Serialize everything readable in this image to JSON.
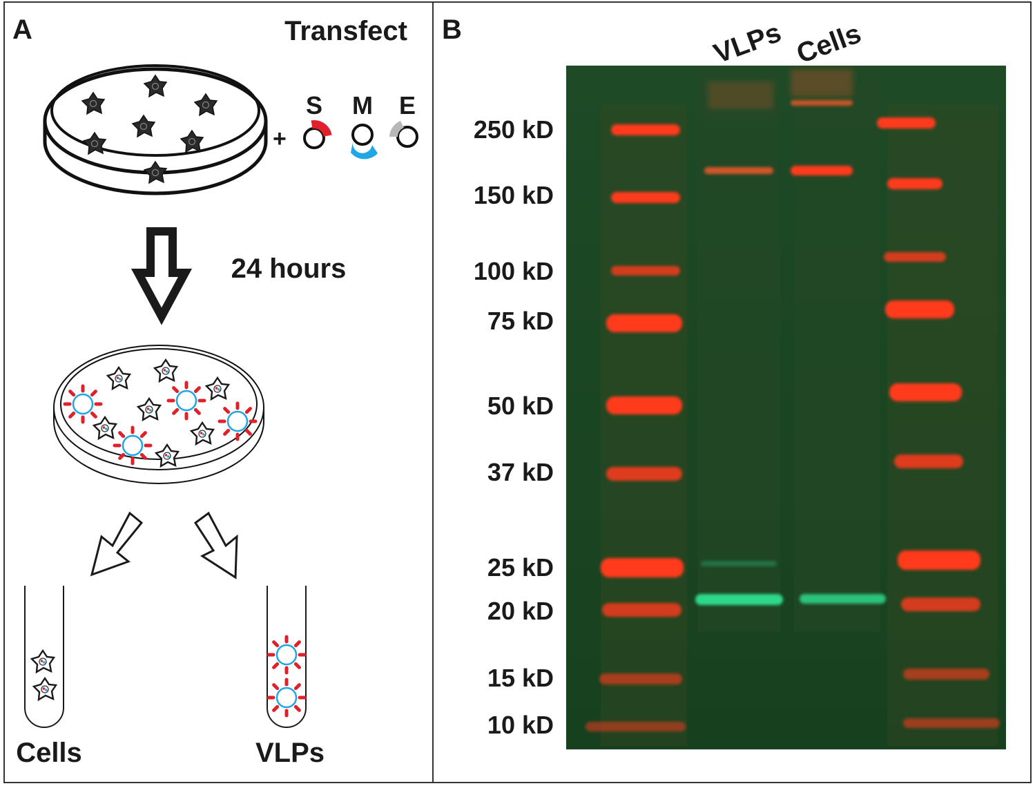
{
  "panel_a": {
    "letter": "A",
    "transfect_label": "Transfect",
    "plus_sign": "+",
    "plasmids": [
      {
        "label": "S",
        "color": "#e0202a"
      },
      {
        "label": "M",
        "color": "#1ea6e6"
      },
      {
        "label": "E",
        "color": "#b8b8b8"
      }
    ],
    "time_label": "24 hours",
    "tube_left_label": "Cells",
    "tube_right_label": "VLPs"
  },
  "panel_b": {
    "letter": "B",
    "lane_labels": [
      "VLPs",
      "Cells"
    ],
    "markers": [
      "250 kD",
      "150 kD",
      "100 kD",
      "75 kD",
      "50 kD",
      "37 kD",
      "25 kD",
      "20 kD",
      "15 kD",
      "10 kD"
    ],
    "gel_background": "#123a1e",
    "ladder_color": "#ff3a1a",
    "green_band_color": "#2fd88a"
  }
}
